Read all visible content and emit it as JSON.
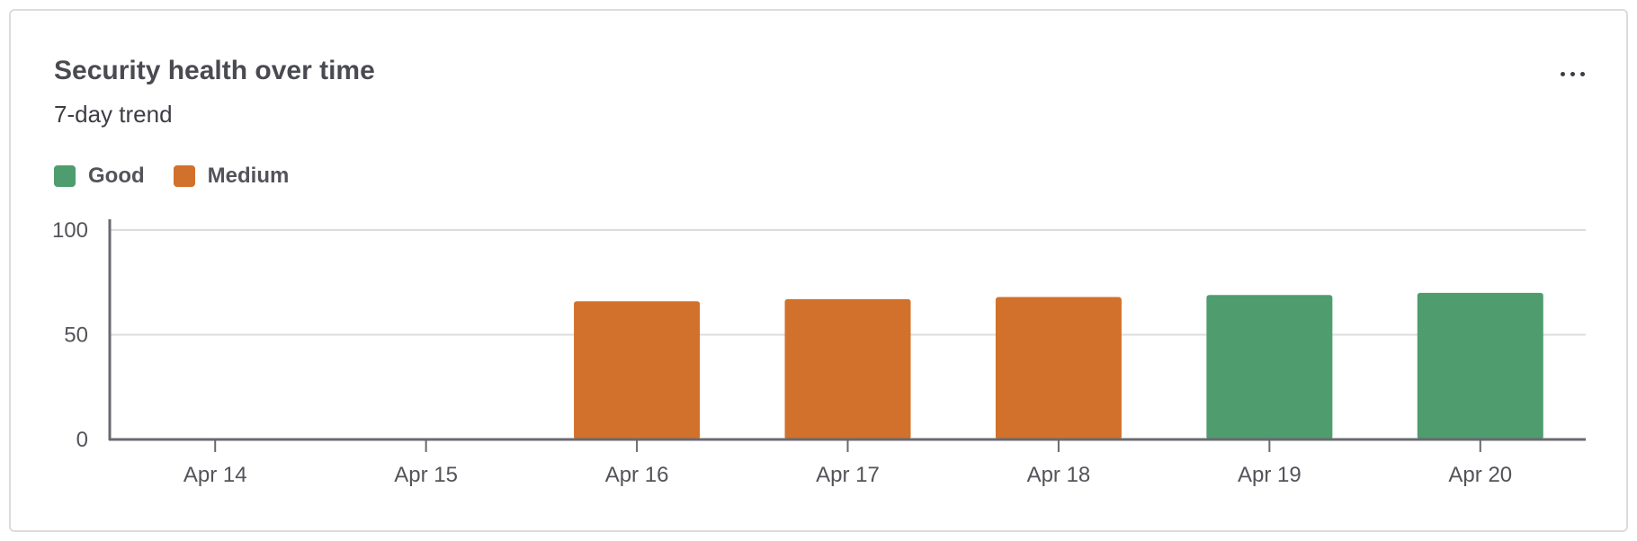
{
  "card": {
    "title": "Security health over time",
    "subtitle": "7-day trend",
    "more_icon": "more-horizontal-icon"
  },
  "colors": {
    "good": "#4f9d6e",
    "medium": "#d2712b",
    "text": "#535359",
    "title": "#4a4a52",
    "grid": "#dcdcde",
    "axis": "#696970"
  },
  "chart_data": {
    "type": "bar",
    "title": "Security health over time",
    "subtitle": "7-day trend",
    "xlabel": "",
    "ylabel": "",
    "categories": [
      "Apr 14",
      "Apr 15",
      "Apr 16",
      "Apr 17",
      "Apr 18",
      "Apr 19",
      "Apr 20"
    ],
    "values": [
      0,
      0,
      66,
      67,
      68,
      69,
      70
    ],
    "status": [
      "",
      "",
      "Medium",
      "Medium",
      "Medium",
      "Good",
      "Good"
    ],
    "legend": [
      {
        "name": "Good",
        "color": "#4f9d6e"
      },
      {
        "name": "Medium",
        "color": "#d2712b"
      }
    ],
    "legend_position": "top-left",
    "ylim": [
      0,
      100
    ],
    "yticks": [
      0,
      50,
      100
    ],
    "grid": true
  }
}
